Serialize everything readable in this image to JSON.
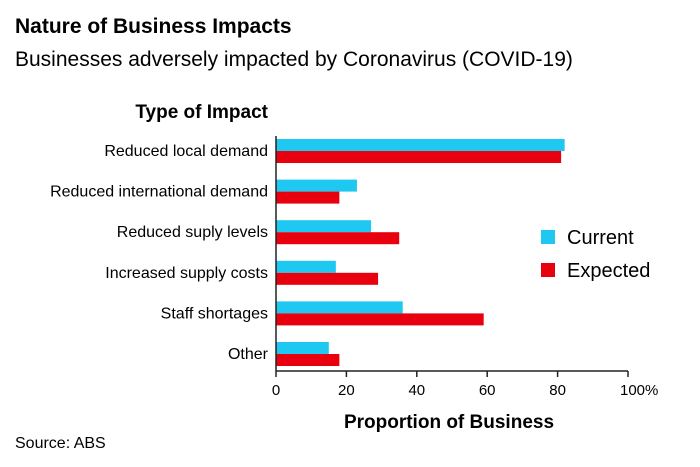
{
  "chart_data": {
    "type": "bar",
    "orientation": "horizontal",
    "title": "Nature of Business Impacts",
    "subtitle": "Businesses adversely impacted by Coronavirus (COVID-19)",
    "category_axis_title": "Type of Impact",
    "xlabel": "Proportion of Business",
    "source": "Source: ABS",
    "categories": [
      "Reduced local demand",
      "Reduced international demand",
      "Reduced suply levels",
      "Increased supply costs",
      "Staff shortages",
      "Other"
    ],
    "series": [
      {
        "name": "Current",
        "color": "#1EC8F0",
        "values": [
          82,
          23,
          27,
          17,
          36,
          15
        ]
      },
      {
        "name": "Expected",
        "color": "#E8000F",
        "values": [
          81,
          18,
          35,
          29,
          59,
          18
        ]
      }
    ],
    "xlim": [
      0,
      100
    ],
    "xticks": [
      0,
      20,
      40,
      60,
      80,
      100
    ],
    "xtick_labels": [
      "0",
      "20",
      "40",
      "60",
      "80",
      "100%"
    ],
    "legend_position": "right",
    "grid": false
  }
}
